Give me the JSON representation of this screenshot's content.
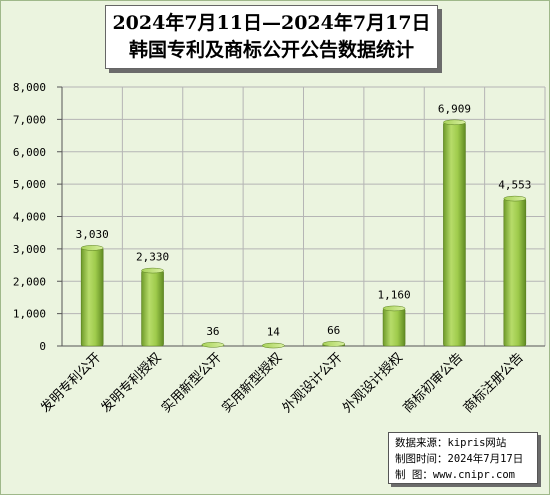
{
  "chart_data": {
    "type": "bar",
    "title_lines": [
      "2024年7月11日—2024年7月17日",
      "韩国专利及商标公开公告数据统计"
    ],
    "categories": [
      "发明专利公开",
      "发明专利授权",
      "实用新型公开",
      "实用新型授权",
      "外观设计公开",
      "外观设计授权",
      "商标初审公告",
      "商标注册公告"
    ],
    "values": [
      3030,
      2330,
      36,
      14,
      66,
      1160,
      6909,
      4553
    ],
    "value_labels": [
      "3,030",
      "2,330",
      "36",
      "14",
      "66",
      "1,160",
      "6,909",
      "4,553"
    ],
    "y_ticks": [
      "0",
      "1,000",
      "2,000",
      "3,000",
      "4,000",
      "5,000",
      "6,000",
      "7,000",
      "8,000"
    ],
    "ylim": [
      0,
      8000
    ],
    "grid": true,
    "bar_color": "#8cbf3f"
  },
  "source": {
    "line1": "数据来源：kipris网站",
    "line2": "制图时间：2024年7月17日",
    "line3": "制    图：www.cnipr.com"
  }
}
